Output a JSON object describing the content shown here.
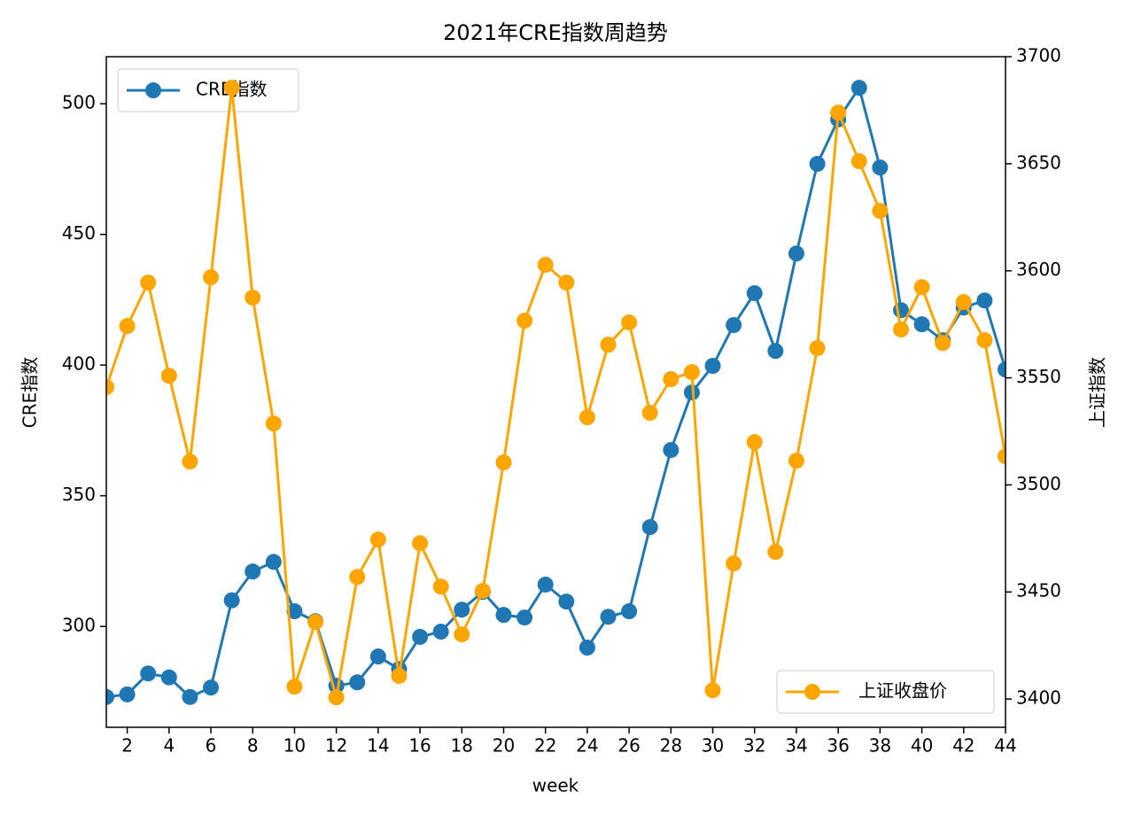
{
  "chart_data": {
    "type": "line",
    "title": "2021年CRE指数周趋势",
    "x_label": "week",
    "y_label": "CRE指数",
    "y2_label": "上证指数",
    "x": [
      1,
      2,
      3,
      4,
      5,
      6,
      7,
      8,
      9,
      10,
      11,
      12,
      13,
      14,
      15,
      16,
      17,
      18,
      19,
      20,
      21,
      22,
      23,
      24,
      25,
      26,
      27,
      28,
      29,
      30,
      31,
      32,
      33,
      34,
      35,
      36,
      37,
      38,
      39,
      40,
      41,
      42,
      43,
      44
    ],
    "xlim": [
      1,
      44
    ],
    "xticks": [
      2,
      4,
      6,
      8,
      10,
      12,
      14,
      16,
      18,
      20,
      22,
      24,
      26,
      28,
      30,
      32,
      34,
      36,
      38,
      40,
      42,
      44
    ],
    "ylim": [
      261.4,
      518
    ],
    "yticks": [
      300,
      350,
      400,
      450,
      500
    ],
    "y2lim": [
      3386.8,
      3700
    ],
    "y2ticks": [
      3400,
      3450,
      3500,
      3550,
      3600,
      3650,
      3700
    ],
    "series": [
      {
        "name": "CRE指数",
        "color": "#1f77b4",
        "legend": "upper left",
        "values": [
          273,
          274,
          282,
          280.5,
          273,
          276.6,
          310,
          321,
          324.7,
          305.8,
          302,
          277.3,
          278.6,
          288.5,
          283.7,
          296,
          298,
          306.4,
          313.2,
          304.4,
          303.4,
          316,
          309.5,
          291.9,
          303.7,
          305.8,
          338,
          367.5,
          389.5,
          399.7,
          415.3,
          427.5,
          405.4,
          442.7,
          477,
          494,
          506.1,
          475.6,
          421,
          415.6,
          409.5,
          422,
          424.7,
          398.3
        ]
      },
      {
        "name": "上证收盘价",
        "color": "#ffa500",
        "axis": "y2",
        "legend": "lower right",
        "values": [
          3545.7,
          3574.2,
          3594.5,
          3551,
          3510.9,
          3597,
          3685.5,
          3587.5,
          3528.7,
          3405.8,
          3436,
          3400.8,
          3457,
          3474.5,
          3410.8,
          3472.8,
          3452.5,
          3430.2,
          3450.5,
          3510.5,
          3576.7,
          3602.8,
          3594.5,
          3531.6,
          3565.5,
          3575.9,
          3533.7,
          3549.4,
          3552.7,
          3404.1,
          3463.3,
          3520,
          3468.7,
          3511.3,
          3563.9,
          3673.9,
          3651.2,
          3628,
          3572.6,
          3592.4,
          3566.3,
          3585.4,
          3567.6,
          3513.4
        ]
      }
    ]
  }
}
